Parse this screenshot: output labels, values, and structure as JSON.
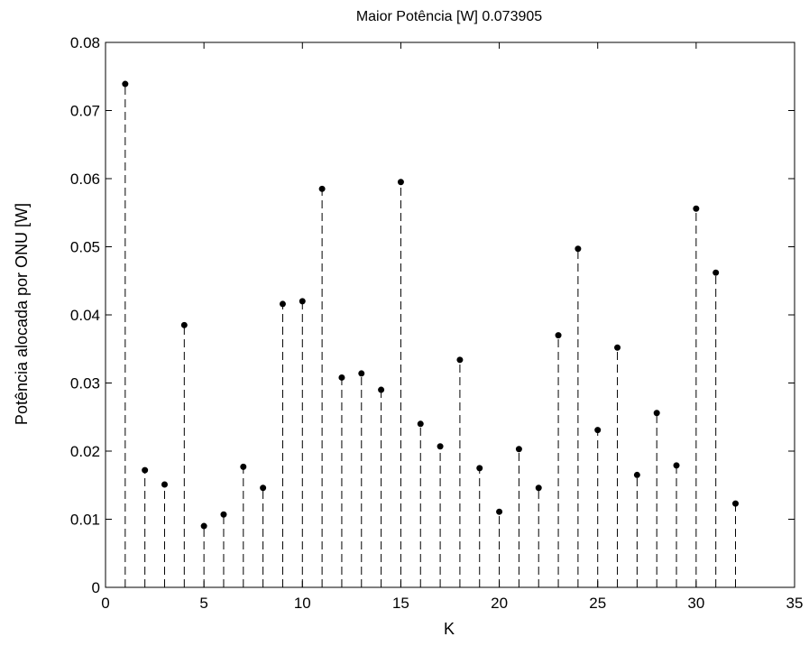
{
  "chart_data": {
    "type": "stem",
    "title": "Maior Potência [W] 0.073905",
    "xlabel": "K",
    "ylabel": "Potência alocada por ONU [W]",
    "xlim": [
      0,
      35
    ],
    "ylim": [
      0,
      0.08
    ],
    "x_ticks": [
      0,
      5,
      10,
      15,
      20,
      25,
      30,
      35
    ],
    "y_ticks": [
      0,
      0.01,
      0.02,
      0.03,
      0.04,
      0.05,
      0.06,
      0.07,
      0.08
    ],
    "x_tick_labels": [
      "0",
      "5",
      "10",
      "15",
      "20",
      "25",
      "30",
      "35"
    ],
    "y_tick_labels": [
      "0",
      "0.01",
      "0.02",
      "0.03",
      "0.04",
      "0.05",
      "0.06",
      "0.07",
      "0.08"
    ],
    "grid": false,
    "line_style": "dashed",
    "marker": "dot",
    "color": "#000000",
    "x": [
      1,
      2,
      3,
      4,
      5,
      6,
      7,
      8,
      9,
      10,
      11,
      12,
      13,
      14,
      15,
      16,
      17,
      18,
      19,
      20,
      21,
      22,
      23,
      24,
      25,
      26,
      27,
      28,
      29,
      30,
      31,
      32
    ],
    "values": [
      0.0739,
      0.0172,
      0.0151,
      0.0385,
      0.009,
      0.0107,
      0.0177,
      0.0146,
      0.0416,
      0.042,
      0.0585,
      0.0308,
      0.0314,
      0.029,
      0.0595,
      0.024,
      0.0207,
      0.0334,
      0.0175,
      0.0111,
      0.0203,
      0.0146,
      0.037,
      0.0497,
      0.0231,
      0.0352,
      0.0165,
      0.0256,
      0.0179,
      0.0556,
      0.0462,
      0.0123
    ]
  }
}
